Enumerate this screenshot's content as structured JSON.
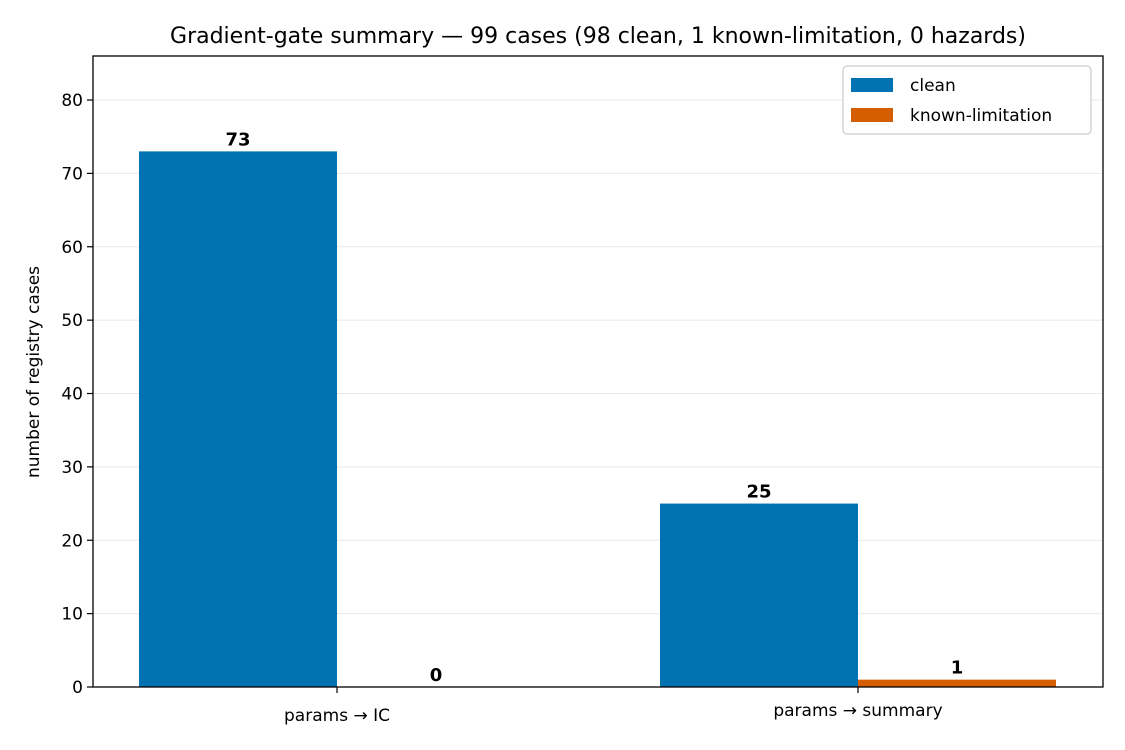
{
  "chart_data": {
    "type": "bar",
    "title": "Gradient-gate summary — 99 cases (98 clean, 1 known-limitation, 0 hazards)",
    "xlabel": "",
    "ylabel": "number of registry cases",
    "categories": [
      "params → IC",
      "params → summary"
    ],
    "series": [
      {
        "name": "clean",
        "values": [
          73,
          25
        ]
      },
      {
        "name": "known-limitation",
        "values": [
          0,
          1
        ]
      }
    ],
    "ylim": [
      0,
      86
    ],
    "yticks": [
      0,
      10,
      20,
      30,
      40,
      50,
      60,
      70,
      80
    ],
    "grid": "y",
    "legend": "top-right",
    "colors": {
      "clean": "#0072b2",
      "known-limitation": "#d55e00",
      "grid": "#e8e8e8"
    }
  }
}
